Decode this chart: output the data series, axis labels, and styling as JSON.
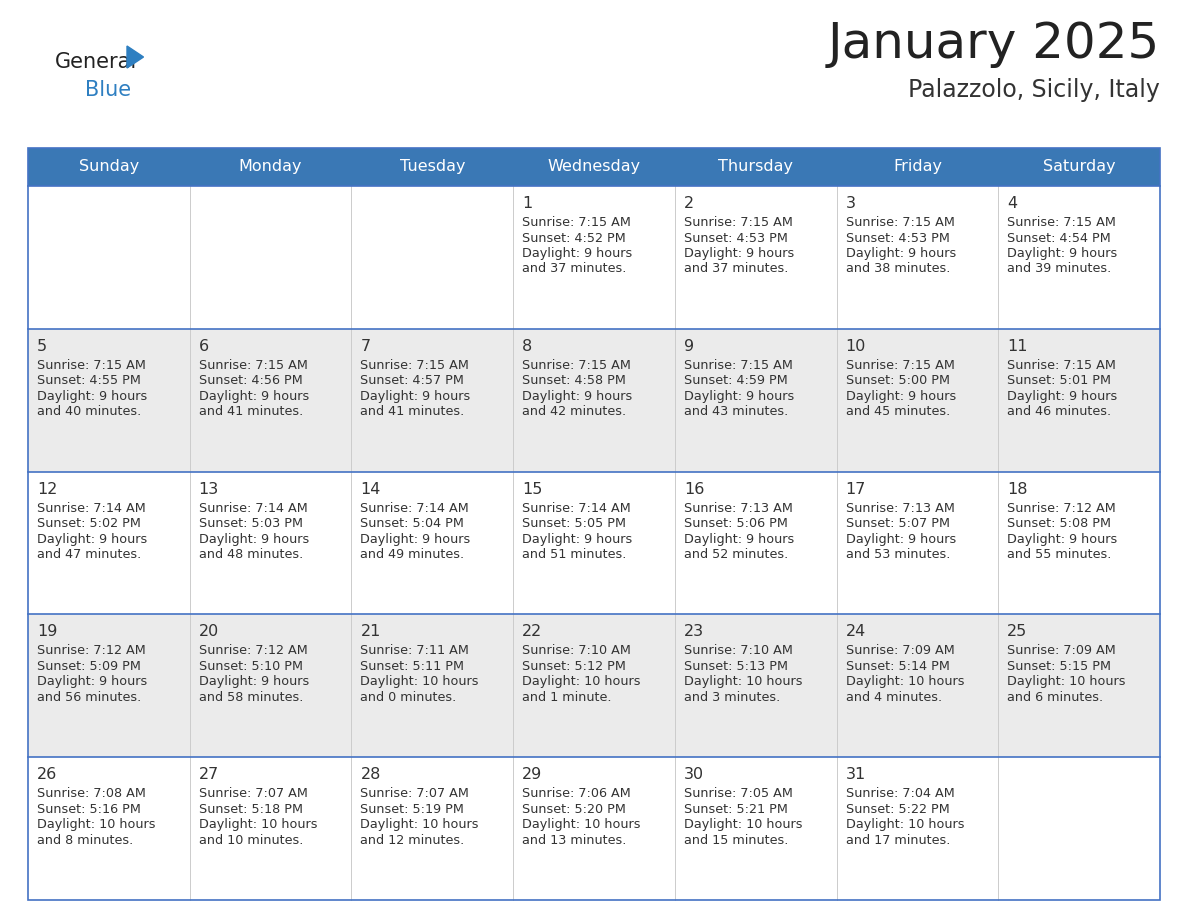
{
  "title": "January 2025",
  "subtitle": "Palazzolo, Sicily, Italy",
  "header_color": "#3A78B5",
  "header_text_color": "#FFFFFF",
  "cell_bg_white": "#FFFFFF",
  "cell_bg_gray": "#EBEBEB",
  "row_separator_color": "#4472C4",
  "outer_border_color": "#4472C4",
  "day_names": [
    "Sunday",
    "Monday",
    "Tuesday",
    "Wednesday",
    "Thursday",
    "Friday",
    "Saturday"
  ],
  "days_data": [
    {
      "day": 1,
      "col": 3,
      "row": 0,
      "sunrise": "7:15 AM",
      "sunset": "4:52 PM",
      "daylight_line1": "Daylight: 9 hours",
      "daylight_line2": "and 37 minutes."
    },
    {
      "day": 2,
      "col": 4,
      "row": 0,
      "sunrise": "7:15 AM",
      "sunset": "4:53 PM",
      "daylight_line1": "Daylight: 9 hours",
      "daylight_line2": "and 37 minutes."
    },
    {
      "day": 3,
      "col": 5,
      "row": 0,
      "sunrise": "7:15 AM",
      "sunset": "4:53 PM",
      "daylight_line1": "Daylight: 9 hours",
      "daylight_line2": "and 38 minutes."
    },
    {
      "day": 4,
      "col": 6,
      "row": 0,
      "sunrise": "7:15 AM",
      "sunset": "4:54 PM",
      "daylight_line1": "Daylight: 9 hours",
      "daylight_line2": "and 39 minutes."
    },
    {
      "day": 5,
      "col": 0,
      "row": 1,
      "sunrise": "7:15 AM",
      "sunset": "4:55 PM",
      "daylight_line1": "Daylight: 9 hours",
      "daylight_line2": "and 40 minutes."
    },
    {
      "day": 6,
      "col": 1,
      "row": 1,
      "sunrise": "7:15 AM",
      "sunset": "4:56 PM",
      "daylight_line1": "Daylight: 9 hours",
      "daylight_line2": "and 41 minutes."
    },
    {
      "day": 7,
      "col": 2,
      "row": 1,
      "sunrise": "7:15 AM",
      "sunset": "4:57 PM",
      "daylight_line1": "Daylight: 9 hours",
      "daylight_line2": "and 41 minutes."
    },
    {
      "day": 8,
      "col": 3,
      "row": 1,
      "sunrise": "7:15 AM",
      "sunset": "4:58 PM",
      "daylight_line1": "Daylight: 9 hours",
      "daylight_line2": "and 42 minutes."
    },
    {
      "day": 9,
      "col": 4,
      "row": 1,
      "sunrise": "7:15 AM",
      "sunset": "4:59 PM",
      "daylight_line1": "Daylight: 9 hours",
      "daylight_line2": "and 43 minutes."
    },
    {
      "day": 10,
      "col": 5,
      "row": 1,
      "sunrise": "7:15 AM",
      "sunset": "5:00 PM",
      "daylight_line1": "Daylight: 9 hours",
      "daylight_line2": "and 45 minutes."
    },
    {
      "day": 11,
      "col": 6,
      "row": 1,
      "sunrise": "7:15 AM",
      "sunset": "5:01 PM",
      "daylight_line1": "Daylight: 9 hours",
      "daylight_line2": "and 46 minutes."
    },
    {
      "day": 12,
      "col": 0,
      "row": 2,
      "sunrise": "7:14 AM",
      "sunset": "5:02 PM",
      "daylight_line1": "Daylight: 9 hours",
      "daylight_line2": "and 47 minutes."
    },
    {
      "day": 13,
      "col": 1,
      "row": 2,
      "sunrise": "7:14 AM",
      "sunset": "5:03 PM",
      "daylight_line1": "Daylight: 9 hours",
      "daylight_line2": "and 48 minutes."
    },
    {
      "day": 14,
      "col": 2,
      "row": 2,
      "sunrise": "7:14 AM",
      "sunset": "5:04 PM",
      "daylight_line1": "Daylight: 9 hours",
      "daylight_line2": "and 49 minutes."
    },
    {
      "day": 15,
      "col": 3,
      "row": 2,
      "sunrise": "7:14 AM",
      "sunset": "5:05 PM",
      "daylight_line1": "Daylight: 9 hours",
      "daylight_line2": "and 51 minutes."
    },
    {
      "day": 16,
      "col": 4,
      "row": 2,
      "sunrise": "7:13 AM",
      "sunset": "5:06 PM",
      "daylight_line1": "Daylight: 9 hours",
      "daylight_line2": "and 52 minutes."
    },
    {
      "day": 17,
      "col": 5,
      "row": 2,
      "sunrise": "7:13 AM",
      "sunset": "5:07 PM",
      "daylight_line1": "Daylight: 9 hours",
      "daylight_line2": "and 53 minutes."
    },
    {
      "day": 18,
      "col": 6,
      "row": 2,
      "sunrise": "7:12 AM",
      "sunset": "5:08 PM",
      "daylight_line1": "Daylight: 9 hours",
      "daylight_line2": "and 55 minutes."
    },
    {
      "day": 19,
      "col": 0,
      "row": 3,
      "sunrise": "7:12 AM",
      "sunset": "5:09 PM",
      "daylight_line1": "Daylight: 9 hours",
      "daylight_line2": "and 56 minutes."
    },
    {
      "day": 20,
      "col": 1,
      "row": 3,
      "sunrise": "7:12 AM",
      "sunset": "5:10 PM",
      "daylight_line1": "Daylight: 9 hours",
      "daylight_line2": "and 58 minutes."
    },
    {
      "day": 21,
      "col": 2,
      "row": 3,
      "sunrise": "7:11 AM",
      "sunset": "5:11 PM",
      "daylight_line1": "Daylight: 10 hours",
      "daylight_line2": "and 0 minutes."
    },
    {
      "day": 22,
      "col": 3,
      "row": 3,
      "sunrise": "7:10 AM",
      "sunset": "5:12 PM",
      "daylight_line1": "Daylight: 10 hours",
      "daylight_line2": "and 1 minute."
    },
    {
      "day": 23,
      "col": 4,
      "row": 3,
      "sunrise": "7:10 AM",
      "sunset": "5:13 PM",
      "daylight_line1": "Daylight: 10 hours",
      "daylight_line2": "and 3 minutes."
    },
    {
      "day": 24,
      "col": 5,
      "row": 3,
      "sunrise": "7:09 AM",
      "sunset": "5:14 PM",
      "daylight_line1": "Daylight: 10 hours",
      "daylight_line2": "and 4 minutes."
    },
    {
      "day": 25,
      "col": 6,
      "row": 3,
      "sunrise": "7:09 AM",
      "sunset": "5:15 PM",
      "daylight_line1": "Daylight: 10 hours",
      "daylight_line2": "and 6 minutes."
    },
    {
      "day": 26,
      "col": 0,
      "row": 4,
      "sunrise": "7:08 AM",
      "sunset": "5:16 PM",
      "daylight_line1": "Daylight: 10 hours",
      "daylight_line2": "and 8 minutes."
    },
    {
      "day": 27,
      "col": 1,
      "row": 4,
      "sunrise": "7:07 AM",
      "sunset": "5:18 PM",
      "daylight_line1": "Daylight: 10 hours",
      "daylight_line2": "and 10 minutes."
    },
    {
      "day": 28,
      "col": 2,
      "row": 4,
      "sunrise": "7:07 AM",
      "sunset": "5:19 PM",
      "daylight_line1": "Daylight: 10 hours",
      "daylight_line2": "and 12 minutes."
    },
    {
      "day": 29,
      "col": 3,
      "row": 4,
      "sunrise": "7:06 AM",
      "sunset": "5:20 PM",
      "daylight_line1": "Daylight: 10 hours",
      "daylight_line2": "and 13 minutes."
    },
    {
      "day": 30,
      "col": 4,
      "row": 4,
      "sunrise": "7:05 AM",
      "sunset": "5:21 PM",
      "daylight_line1": "Daylight: 10 hours",
      "daylight_line2": "and 15 minutes."
    },
    {
      "day": 31,
      "col": 5,
      "row": 4,
      "sunrise": "7:04 AM",
      "sunset": "5:22 PM",
      "daylight_line1": "Daylight: 10 hours",
      "daylight_line2": "and 17 minutes."
    }
  ],
  "num_rows": 5,
  "num_cols": 7
}
